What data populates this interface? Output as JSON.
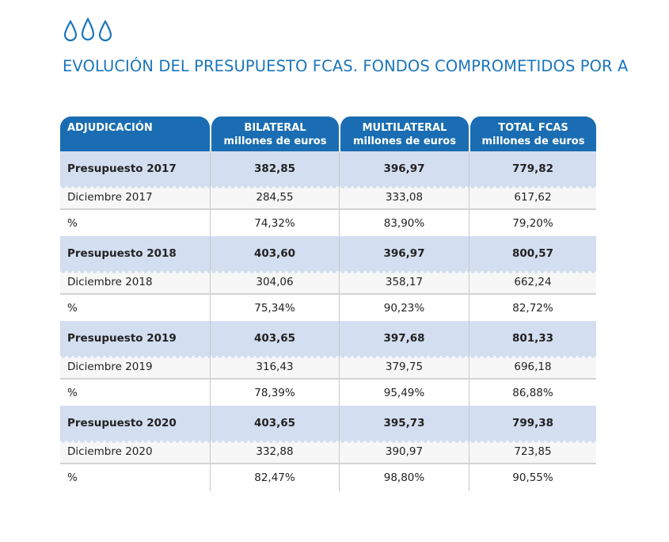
{
  "header": {
    "icon": "water-drops-icon",
    "title": "EVOLUCIÓN DEL PRESUPUESTO FCAS. FONDOS COMPROMETIDOS POR A"
  },
  "colors": {
    "title": "#1b75bb",
    "header_bg": "#1a6db2",
    "budget_row_bg": "#d3def0"
  },
  "table": {
    "columns": [
      {
        "line1": "ADJUDICACIÓN",
        "line2": ""
      },
      {
        "line1": "BILATERAL",
        "line2": "millones de euros"
      },
      {
        "line1": "MULTILATERAL",
        "line2": "millones de euros"
      },
      {
        "line1": "TOTAL FCAS",
        "line2": "millones de euros"
      }
    ],
    "groups": [
      {
        "budget": [
          "Presupuesto 2017",
          "382,85",
          "396,97",
          "779,82"
        ],
        "december": [
          "Diciembre 2017",
          "284,55",
          "333,08",
          "617,62"
        ],
        "percent": [
          "%",
          "74,32%",
          "83,90%",
          "79,20%"
        ]
      },
      {
        "budget": [
          "Presupuesto 2018",
          "403,60",
          "396,97",
          "800,57"
        ],
        "december": [
          "Diciembre 2018",
          "304,06",
          "358,17",
          "662,24"
        ],
        "percent": [
          "%",
          "75,34%",
          "90,23%",
          "82,72%"
        ]
      },
      {
        "budget": [
          "Presupuesto 2019",
          "403,65",
          "397,68",
          "801,33"
        ],
        "december": [
          "Diciembre 2019",
          "316,43",
          "379,75",
          "696,18"
        ],
        "percent": [
          "%",
          "78,39%",
          "95,49%",
          "86,88%"
        ]
      },
      {
        "budget": [
          "Presupuesto 2020",
          "403,65",
          "395,73",
          "799,38"
        ],
        "december": [
          "Diciembre 2020",
          "332,88",
          "390,97",
          "723,85"
        ],
        "percent": [
          "%",
          "82,47%",
          "98,80%",
          "90,55%"
        ]
      }
    ]
  }
}
